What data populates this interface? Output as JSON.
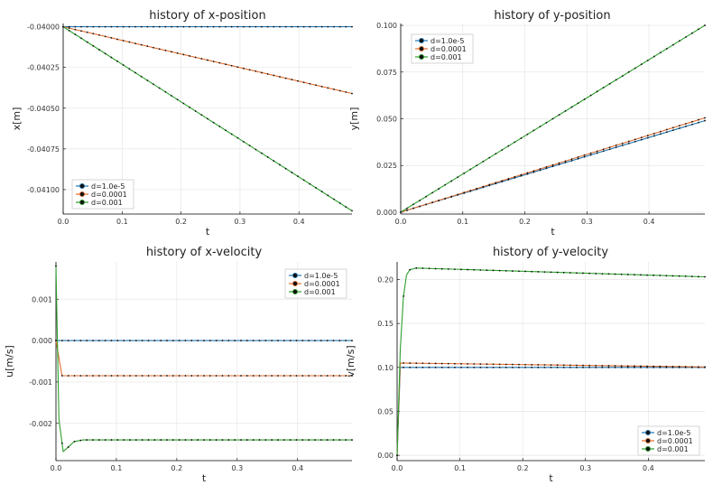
{
  "series_colors": [
    "#1f77b4",
    "#e26a2c",
    "#2ca02c"
  ],
  "chart_data": [
    {
      "type": "line",
      "title": "history of x-position",
      "xlabel": "t",
      "ylabel": "x[m]",
      "xlim": [
        0,
        0.49
      ],
      "ylim": [
        -0.04115,
        -0.03998
      ],
      "xticks": [
        0.0,
        0.1,
        0.2,
        0.3,
        0.4
      ],
      "xticklabels": [
        "0.0",
        "0.1",
        "0.2",
        "0.3",
        "0.4"
      ],
      "yticks": [
        -0.041,
        -0.04075,
        -0.0405,
        -0.04025,
        -0.04
      ],
      "yticklabels": [
        "-0.04100",
        "-0.04075",
        "-0.04050",
        "-0.04025",
        "-0.04000"
      ],
      "legend_position": "bottom-left",
      "series": [
        {
          "name": "d=1.0e-5",
          "kind": "linear",
          "start": -0.04,
          "end": -0.04
        },
        {
          "name": "d=0.0001",
          "kind": "linear",
          "start": -0.04,
          "end": -0.04041
        },
        {
          "name": "d=0.001",
          "kind": "linear",
          "start": -0.04,
          "end": -0.04113
        }
      ]
    },
    {
      "type": "line",
      "title": "history of y-position",
      "xlabel": "t",
      "ylabel": "y[m]",
      "xlim": [
        0,
        0.49
      ],
      "ylim": [
        -0.001,
        0.101
      ],
      "xticks": [
        0.0,
        0.1,
        0.2,
        0.3,
        0.4
      ],
      "xticklabels": [
        "0.0",
        "0.1",
        "0.2",
        "0.3",
        "0.4"
      ],
      "yticks": [
        0.0,
        0.025,
        0.05,
        0.075,
        0.1
      ],
      "yticklabels": [
        "0.000",
        "0.025",
        "0.050",
        "0.075",
        "0.100"
      ],
      "legend_position": "top-left",
      "series": [
        {
          "name": "d=1.0e-5",
          "kind": "linear",
          "start": 0,
          "end": 0.049
        },
        {
          "name": "d=0.0001",
          "kind": "linear",
          "start": 0,
          "end": 0.0505
        },
        {
          "name": "d=0.001",
          "kind": "linear",
          "start": 0,
          "end": 0.1
        }
      ]
    },
    {
      "type": "line",
      "title": "history of x-velocity",
      "xlabel": "t",
      "ylabel": "u[m/s]",
      "xlim": [
        0,
        0.49
      ],
      "ylim": [
        -0.0029,
        0.0019
      ],
      "xticks": [
        0.0,
        0.1,
        0.2,
        0.3,
        0.4
      ],
      "xticklabels": [
        "0.0",
        "0.1",
        "0.2",
        "0.3",
        "0.4"
      ],
      "yticks": [
        -0.002,
        -0.001,
        0.0,
        0.001
      ],
      "yticklabels": [
        "-0.002",
        "-0.001",
        "0.000",
        "0.001"
      ],
      "legend_position": "top-right",
      "series": [
        {
          "name": "d=1.0e-5",
          "kind": "points",
          "points": [
            [
              0,
              0
            ],
            [
              0.49,
              0
            ]
          ]
        },
        {
          "name": "d=0.0001",
          "kind": "points",
          "points": [
            [
              0,
              0
            ],
            [
              0.01,
              -0.00085
            ],
            [
              0.49,
              -0.00085
            ]
          ]
        },
        {
          "name": "d=0.001",
          "kind": "points",
          "points": [
            [
              0,
              0.0018
            ],
            [
              0.005,
              -0.0019
            ],
            [
              0.012,
              -0.00268
            ],
            [
              0.02,
              -0.00258
            ],
            [
              0.03,
              -0.00244
            ],
            [
              0.045,
              -0.0024
            ],
            [
              0.49,
              -0.0024
            ]
          ]
        }
      ]
    },
    {
      "type": "line",
      "title": "history of y-velocity",
      "xlabel": "t",
      "ylabel": "v[m/s]",
      "xlim": [
        0,
        0.49
      ],
      "ylim": [
        -0.006,
        0.22
      ],
      "xticks": [
        0.0,
        0.1,
        0.2,
        0.3,
        0.4
      ],
      "xticklabels": [
        "0.0",
        "0.1",
        "0.2",
        "0.3",
        "0.4"
      ],
      "yticks": [
        0.0,
        0.05,
        0.1,
        0.15,
        0.2
      ],
      "yticklabels": [
        "0.00",
        "0.05",
        "0.10",
        "0.15",
        "0.20"
      ],
      "legend_position": "bottom-right",
      "series": [
        {
          "name": "d=1.0e-5",
          "kind": "points",
          "points": [
            [
              0,
              0
            ],
            [
              0.005,
              0.1
            ],
            [
              0.49,
              0.1
            ]
          ]
        },
        {
          "name": "d=0.0001",
          "kind": "points",
          "points": [
            [
              0,
              0
            ],
            [
              0.005,
              0.105
            ],
            [
              0.49,
              0.1005
            ]
          ]
        },
        {
          "name": "d=0.001",
          "kind": "points",
          "points": [
            [
              0,
              0
            ],
            [
              0.005,
              0.12
            ],
            [
              0.01,
              0.18
            ],
            [
              0.015,
              0.205
            ],
            [
              0.02,
              0.211
            ],
            [
              0.03,
              0.213
            ],
            [
              0.49,
              0.203
            ]
          ]
        }
      ]
    }
  ]
}
